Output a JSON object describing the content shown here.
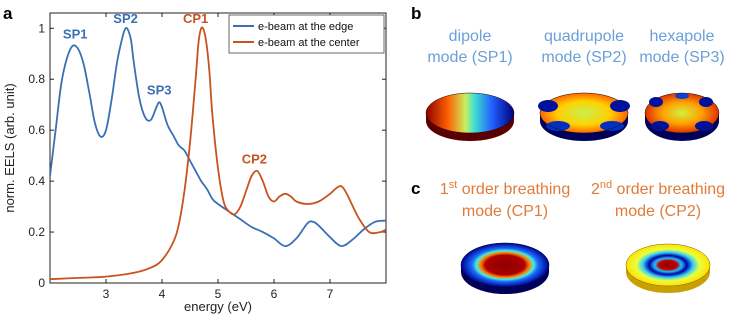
{
  "chart_data": {
    "type": "line",
    "panel_letter": "a",
    "xlabel": "energy (eV)",
    "ylabel": "norm. EELS (arb. unit)",
    "xlim": [
      2.0,
      8.0
    ],
    "ylim": [
      0,
      1.06
    ],
    "x_ticks": [
      "3",
      "4",
      "5",
      "6",
      "7"
    ],
    "x_tick_values": [
      3,
      4,
      5,
      6,
      7
    ],
    "y_ticks": [
      "0",
      "0.2",
      "0.4",
      "0.6",
      "0.8",
      "1"
    ],
    "y_tick_values": [
      0,
      0.2,
      0.4,
      0.6,
      0.8,
      1.0
    ],
    "legend_position": "top-right",
    "series": [
      {
        "name": "e-beam at the edge",
        "color": "#3a6fb5",
        "x": [
          2.0,
          2.1,
          2.2,
          2.3,
          2.4,
          2.5,
          2.6,
          2.7,
          2.8,
          2.9,
          3.0,
          3.1,
          3.2,
          3.3,
          3.35,
          3.4,
          3.45,
          3.5,
          3.6,
          3.7,
          3.8,
          3.9,
          3.95,
          4.0,
          4.1,
          4.2,
          4.3,
          4.4,
          4.5,
          4.6,
          4.7,
          4.8,
          4.9,
          5.0,
          5.2,
          5.4,
          5.6,
          5.8,
          6.0,
          6.2,
          6.4,
          6.6,
          6.7,
          6.8,
          7.0,
          7.2,
          7.4,
          7.6,
          7.8,
          8.0
        ],
        "y": [
          0.42,
          0.6,
          0.78,
          0.88,
          0.93,
          0.92,
          0.86,
          0.75,
          0.63,
          0.575,
          0.6,
          0.72,
          0.87,
          0.97,
          1.0,
          0.99,
          0.95,
          0.86,
          0.72,
          0.65,
          0.64,
          0.69,
          0.71,
          0.69,
          0.62,
          0.58,
          0.54,
          0.52,
          0.48,
          0.44,
          0.4,
          0.37,
          0.33,
          0.31,
          0.28,
          0.25,
          0.22,
          0.2,
          0.175,
          0.145,
          0.175,
          0.235,
          0.24,
          0.225,
          0.18,
          0.145,
          0.17,
          0.21,
          0.24,
          0.245
        ]
      },
      {
        "name": "e-beam at the center",
        "color": "#c9521f",
        "x": [
          2.0,
          2.5,
          3.0,
          3.5,
          3.8,
          4.0,
          4.2,
          4.3,
          4.4,
          4.5,
          4.6,
          4.65,
          4.7,
          4.75,
          4.8,
          4.85,
          4.9,
          5.0,
          5.1,
          5.2,
          5.3,
          5.4,
          5.5,
          5.6,
          5.7,
          5.8,
          5.9,
          6.0,
          6.1,
          6.2,
          6.3,
          6.4,
          6.6,
          6.8,
          7.0,
          7.1,
          7.2,
          7.3,
          7.5,
          7.7,
          7.9,
          8.0
        ],
        "y": [
          0.015,
          0.02,
          0.025,
          0.04,
          0.06,
          0.09,
          0.16,
          0.23,
          0.36,
          0.55,
          0.8,
          0.94,
          1.0,
          0.99,
          0.93,
          0.82,
          0.66,
          0.45,
          0.32,
          0.28,
          0.27,
          0.3,
          0.36,
          0.42,
          0.44,
          0.4,
          0.34,
          0.32,
          0.34,
          0.35,
          0.34,
          0.32,
          0.31,
          0.32,
          0.35,
          0.37,
          0.38,
          0.35,
          0.26,
          0.2,
          0.2,
          0.21
        ]
      }
    ],
    "peak_labels": [
      {
        "text": "SP1",
        "x": 2.45,
        "y": 0.96,
        "series": 0
      },
      {
        "text": "SP2",
        "x": 3.35,
        "y": 1.02,
        "series": 0
      },
      {
        "text": "SP3",
        "x": 3.95,
        "y": 0.74,
        "series": 0
      },
      {
        "text": "CP1",
        "x": 4.6,
        "y": 1.02,
        "series": 1
      },
      {
        "text": "CP2",
        "x": 5.65,
        "y": 0.47,
        "series": 1
      }
    ]
  },
  "panel_b": {
    "letter": "b",
    "label_color": "#6a9fd8",
    "modes": [
      {
        "line1": "dipole",
        "line2": "mode (SP1)",
        "icon": "disk-dipole-field-icon"
      },
      {
        "line1": "quadrupole",
        "line2": "mode (SP2)",
        "icon": "disk-quadrupole-field-icon"
      },
      {
        "line1": "hexapole",
        "line2": "mode (SP3)",
        "icon": "disk-hexapole-field-icon"
      }
    ]
  },
  "panel_c": {
    "letter": "c",
    "label_color": "#e07b39",
    "modes": [
      {
        "line1_sup_prefix": "1",
        "line1_sup": "st",
        "line1_rest": " order breathing",
        "line2": "mode (CP1)",
        "icon": "disk-first-breathing-field-icon"
      },
      {
        "line1_sup_prefix": "2",
        "line1_sup": "nd",
        "line1_rest": " order breathing",
        "line2": "mode (CP2)",
        "icon": "disk-second-breathing-field-icon"
      }
    ]
  }
}
